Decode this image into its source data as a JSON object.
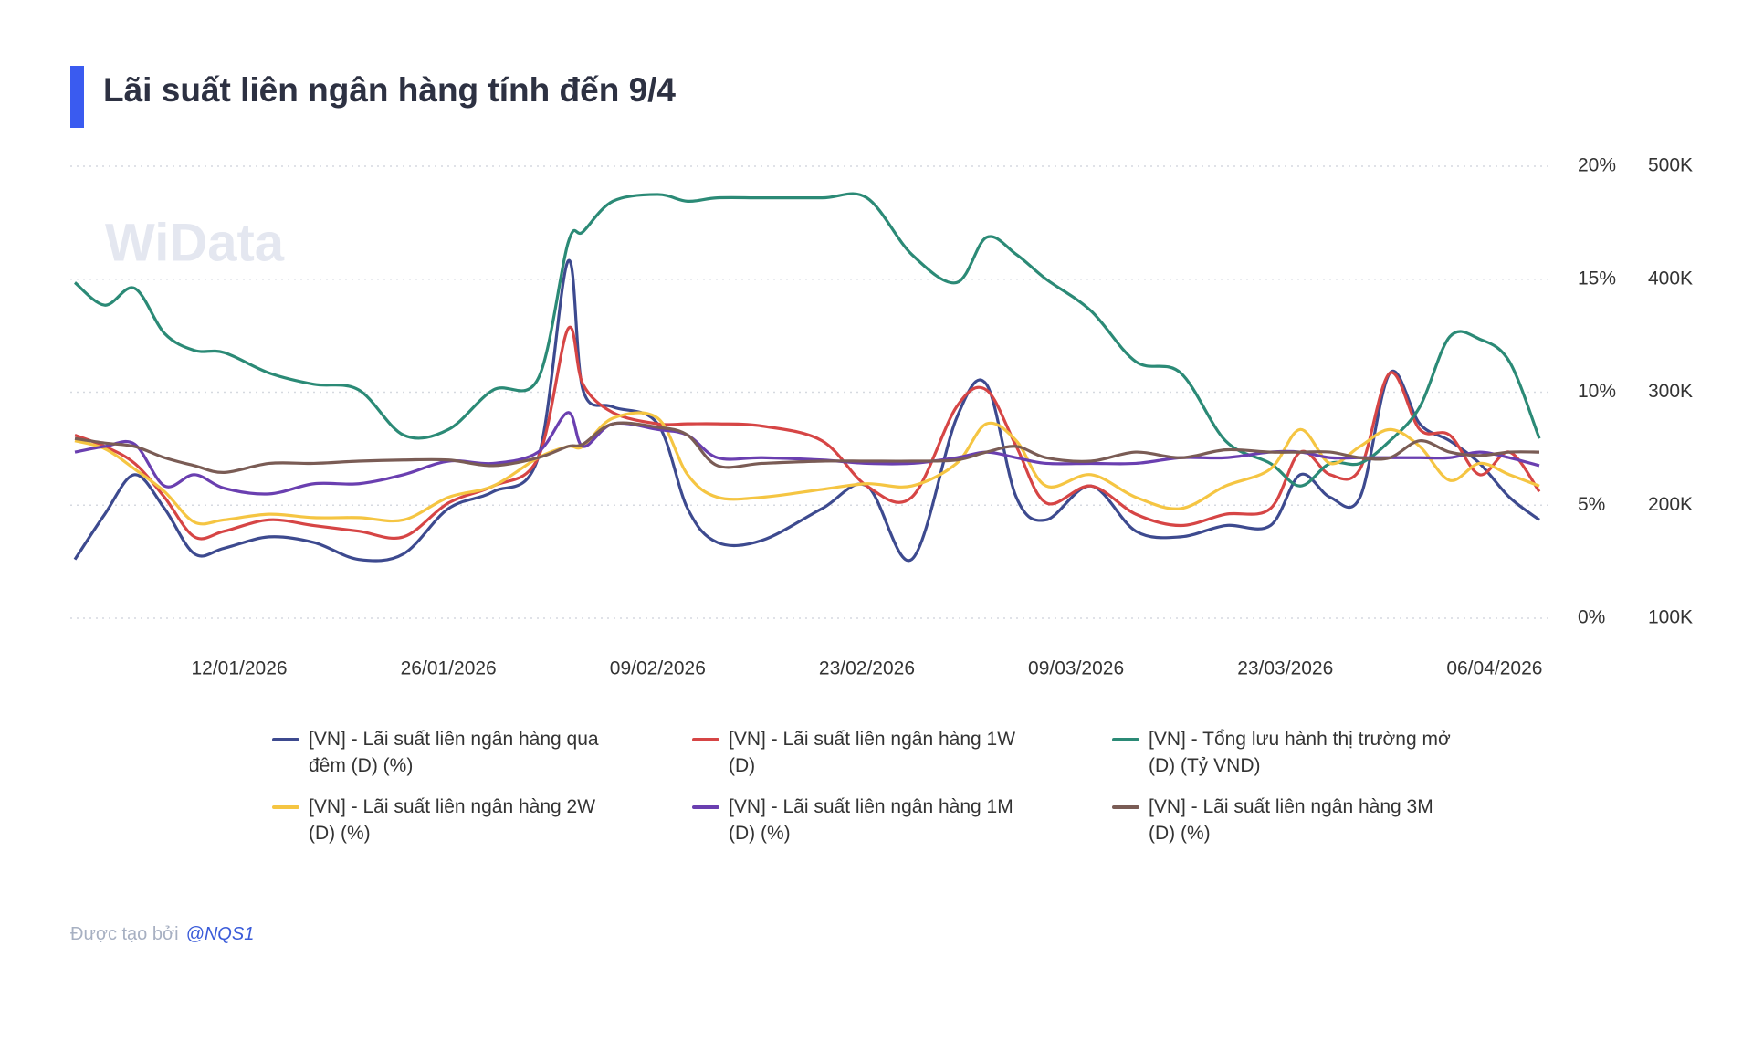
{
  "chart_data": {
    "type": "line",
    "title": "Lãi suất liên ngân hàng tính đến 9/4",
    "watermark": "WiData",
    "x": [
      "01/01/2026",
      "03/01/2026",
      "05/01/2026",
      "07/01/2026",
      "09/01/2026",
      "11/01/2026",
      "14/01/2026",
      "17/01/2026",
      "20/01/2026",
      "23/01/2026",
      "26/01/2026",
      "29/01/2026",
      "01/02/2026",
      "03/02/2026",
      "04/02/2026",
      "06/02/2026",
      "09/02/2026",
      "11/02/2026",
      "13/02/2026",
      "16/02/2026",
      "20/02/2026",
      "23/02/2026",
      "26/02/2026",
      "01/03/2026",
      "03/03/2026",
      "05/03/2026",
      "07/03/2026",
      "10/03/2026",
      "13/03/2026",
      "16/03/2026",
      "19/03/2026",
      "22/03/2026",
      "24/03/2026",
      "26/03/2026",
      "28/03/2026",
      "30/03/2026",
      "01/04/2026",
      "03/04/2026",
      "05/04/2026",
      "07/04/2026",
      "09/04/2026"
    ],
    "xlim": [
      "01/01/2026",
      "09/04/2026"
    ],
    "xticks": [
      "12/01/2026",
      "26/01/2026",
      "09/02/2026",
      "23/02/2026",
      "09/03/2026",
      "23/03/2026",
      "06/04/2026"
    ],
    "ylim": [
      0,
      20
    ],
    "yticks": [
      {
        "value": 0,
        "label": "0%"
      },
      {
        "value": 5,
        "label": "5%"
      },
      {
        "value": 10,
        "label": "10%"
      },
      {
        "value": 15,
        "label": "15%"
      },
      {
        "value": 20,
        "label": "20%"
      }
    ],
    "y2lim": [
      100000,
      500000
    ],
    "y2ticks": [
      {
        "value": 100000,
        "label": "100K"
      },
      {
        "value": 200000,
        "label": "200K"
      },
      {
        "value": 300000,
        "label": "300K"
      },
      {
        "value": 400000,
        "label": "400K"
      },
      {
        "value": 500000,
        "label": "500K"
      }
    ],
    "grid": true,
    "series": [
      {
        "name": "[VN] - Lãi suất liên ngân hàng qua đêm (D) (%)",
        "color": "#3d4a8f",
        "values": [
          2.6,
          4.6,
          6.35,
          4.85,
          2.85,
          3.1,
          3.6,
          3.35,
          2.6,
          2.85,
          4.85,
          5.6,
          7.1,
          15.8,
          10.1,
          9.35,
          8.6,
          4.85,
          3.35,
          3.45,
          4.85,
          5.85,
          2.6,
          8.85,
          10.35,
          5.35,
          4.35,
          5.85,
          3.85,
          3.6,
          4.1,
          4.1,
          6.35,
          5.35,
          5.35,
          10.85,
          8.6,
          7.85,
          6.85,
          5.35,
          4.35
        ]
      },
      {
        "name": "[VN] - Lãi suất liên ngân hàng 1W (D)",
        "color": "#d64545",
        "values": [
          8.1,
          7.6,
          6.85,
          5.35,
          3.6,
          3.85,
          4.35,
          4.1,
          3.85,
          3.6,
          5.1,
          5.85,
          7.1,
          12.8,
          10.35,
          9.1,
          8.6,
          8.6,
          8.6,
          8.5,
          7.85,
          5.85,
          5.35,
          9.35,
          10.1,
          7.6,
          5.1,
          5.85,
          4.6,
          4.1,
          4.6,
          4.85,
          7.35,
          6.35,
          6.6,
          10.85,
          8.35,
          8.1,
          6.35,
          7.35,
          5.6
        ]
      },
      {
        "name": "[VN] - Tổng lưu hành thị trường mở (D) (Tỷ VND)",
        "color": "#2b8a76",
        "axis": "y2",
        "values": [
          397000,
          377000,
          392000,
          352000,
          337000,
          335000,
          317000,
          307000,
          302000,
          262000,
          267000,
          302000,
          312000,
          432000,
          442000,
          469000,
          475000,
          469000,
          472000,
          472000,
          472000,
          472000,
          422000,
          397000,
          437000,
          422000,
          400000,
          372000,
          327000,
          317000,
          257000,
          237000,
          217000,
          237000,
          237000,
          257000,
          287000,
          349000,
          347000,
          327000,
          259000
        ]
      },
      {
        "name": "[VN] - Lãi suất liên ngân hàng 2W (D) (%)",
        "color": "#f5c542",
        "values": [
          7.85,
          7.5,
          6.6,
          5.6,
          4.25,
          4.35,
          4.6,
          4.45,
          4.45,
          4.35,
          5.35,
          5.85,
          7.1,
          7.6,
          7.6,
          8.85,
          8.85,
          6.35,
          5.35,
          5.35,
          5.7,
          5.95,
          5.85,
          6.85,
          8.6,
          7.85,
          5.85,
          6.35,
          5.35,
          4.85,
          5.85,
          6.6,
          8.35,
          6.85,
          7.6,
          8.35,
          7.6,
          6.1,
          6.85,
          6.35,
          5.85
        ]
      },
      {
        "name": "[VN] - Lãi suất liên ngân hàng 1M (D) (%)",
        "color": "#6a3fb0",
        "values": [
          7.35,
          7.6,
          7.7,
          5.85,
          6.35,
          5.75,
          5.5,
          5.95,
          5.95,
          6.35,
          6.95,
          6.85,
          7.35,
          9.1,
          7.6,
          8.6,
          8.35,
          8.1,
          7.1,
          7.1,
          7.0,
          6.85,
          6.85,
          7.1,
          7.35,
          7.1,
          6.85,
          6.85,
          6.85,
          7.1,
          7.1,
          7.35,
          7.35,
          7.1,
          7.1,
          7.1,
          7.1,
          7.1,
          7.35,
          7.1,
          6.75
        ]
      },
      {
        "name": "[VN] - Lãi suất liên ngân hàng 3M (D) (%)",
        "color": "#7a5c55",
        "values": [
          7.95,
          7.75,
          7.6,
          7.1,
          6.75,
          6.45,
          6.85,
          6.85,
          6.95,
          7.0,
          7.0,
          6.75,
          7.1,
          7.6,
          7.7,
          8.6,
          8.45,
          8.1,
          6.75,
          6.85,
          6.95,
          6.95,
          6.95,
          7.0,
          7.35,
          7.6,
          7.1,
          6.95,
          7.35,
          7.1,
          7.45,
          7.35,
          7.35,
          7.35,
          7.1,
          7.1,
          7.85,
          7.35,
          7.2,
          7.35,
          7.35
        ]
      }
    ]
  },
  "footer": {
    "text": "Được tạo bởi",
    "author": "@NQS1"
  }
}
